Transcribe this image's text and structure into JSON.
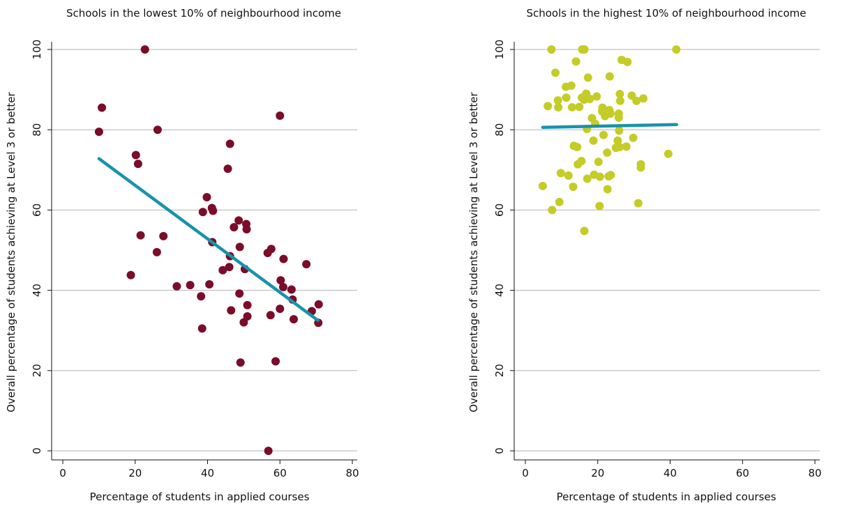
{
  "chart_data": [
    {
      "type": "scatter",
      "title": "Schools in the lowest 10% of neighbourhood income",
      "xlabel": "Percentage of students in applied courses",
      "ylabel": "Overall percentage of students achieving at Level 3 or better",
      "xlim": [
        -3,
        82
      ],
      "ylim": [
        -2,
        102
      ],
      "xticks": [
        "0",
        "20",
        "40",
        "60",
        "80"
      ],
      "yticks": [
        "0",
        "20",
        "40",
        "60",
        "80",
        "100"
      ],
      "grid": true,
      "point_color": "#7b0c2a",
      "line_color": "#1793aa",
      "fit_line": [
        [
          10,
          72.8
        ],
        [
          70.5,
          32.5
        ]
      ],
      "points": [
        [
          10,
          79.5
        ],
        [
          10.8,
          85.5
        ],
        [
          18.8,
          43.8
        ],
        [
          20.2,
          73.7
        ],
        [
          20.8,
          71.5
        ],
        [
          21.5,
          53.7
        ],
        [
          22.7,
          100
        ],
        [
          26,
          49.5
        ],
        [
          26.2,
          80
        ],
        [
          27.8,
          53.5
        ],
        [
          31.5,
          41
        ],
        [
          35.2,
          41.3
        ],
        [
          38.2,
          38.5
        ],
        [
          38.5,
          30.5
        ],
        [
          38.7,
          59.5
        ],
        [
          39.8,
          63.2
        ],
        [
          40.5,
          41.5
        ],
        [
          41.2,
          60.5
        ],
        [
          41.3,
          52
        ],
        [
          41.5,
          59.8
        ],
        [
          44.2,
          45
        ],
        [
          45.6,
          70.3
        ],
        [
          46,
          45.8
        ],
        [
          46.2,
          76.5
        ],
        [
          46.2,
          48.5
        ],
        [
          46.5,
          35
        ],
        [
          47.3,
          55.7
        ],
        [
          48.6,
          57.4
        ],
        [
          48.8,
          39.2
        ],
        [
          48.9,
          50.8
        ],
        [
          49.1,
          22
        ],
        [
          50,
          32
        ],
        [
          50.3,
          45.3
        ],
        [
          50.7,
          56.5
        ],
        [
          50.8,
          55.2
        ],
        [
          51,
          36.3
        ],
        [
          51,
          33.5
        ],
        [
          56.6,
          49.3
        ],
        [
          56.8,
          0
        ],
        [
          57.4,
          33.8
        ],
        [
          57.6,
          50.3
        ],
        [
          58.8,
          22.3
        ],
        [
          60,
          83.5
        ],
        [
          60,
          35.4
        ],
        [
          60.2,
          42.5
        ],
        [
          60.9,
          40.8
        ],
        [
          61,
          47.8
        ],
        [
          63.2,
          40.2
        ],
        [
          63.5,
          37.7
        ],
        [
          63.8,
          32.8
        ],
        [
          67.3,
          46.5
        ],
        [
          68.8,
          34.8
        ],
        [
          70.6,
          31.9
        ],
        [
          70.7,
          36.5
        ]
      ]
    },
    {
      "type": "scatter",
      "title": "Schools in the highest 10% of neighbourhood income",
      "xlabel": "Percentage of students in applied courses",
      "ylabel": "Overall percentage of students achieving at Level 3 or better",
      "xlim": [
        -3,
        82
      ],
      "ylim": [
        -2,
        102
      ],
      "xticks": [
        "0",
        "20",
        "40",
        "60",
        "80"
      ],
      "yticks": [
        "0",
        "20",
        "40",
        "60",
        "80",
        "100"
      ],
      "grid": true,
      "point_color": "#c4cc27",
      "line_color": "#1793aa",
      "fit_line": [
        [
          4.8,
          80.6
        ],
        [
          41.8,
          81.3
        ]
      ],
      "points": [
        [
          4.8,
          66
        ],
        [
          6.2,
          85.9
        ],
        [
          7.2,
          100
        ],
        [
          7.4,
          60
        ],
        [
          8.3,
          94.2
        ],
        [
          9,
          87.3
        ],
        [
          9.1,
          85.6
        ],
        [
          9.4,
          62
        ],
        [
          9.8,
          69.2
        ],
        [
          11.2,
          90.7
        ],
        [
          11.3,
          88
        ],
        [
          11.9,
          68.6
        ],
        [
          12.7,
          91
        ],
        [
          12.9,
          85.6
        ],
        [
          13.2,
          65.8
        ],
        [
          13.4,
          76
        ],
        [
          14,
          97
        ],
        [
          14.3,
          75.7
        ],
        [
          14.5,
          71.4
        ],
        [
          14.9,
          85.7
        ],
        [
          15.5,
          72.2
        ],
        [
          15.6,
          88
        ],
        [
          15.7,
          100
        ],
        [
          16.2,
          87.5
        ],
        [
          16.3,
          100
        ],
        [
          16.3,
          54.8
        ],
        [
          16.8,
          89
        ],
        [
          17,
          80.2
        ],
        [
          17.1,
          67.8
        ],
        [
          17.3,
          93
        ],
        [
          17.8,
          87.7
        ],
        [
          18.4,
          82.9
        ],
        [
          18.8,
          77.3
        ],
        [
          19,
          68.8
        ],
        [
          19.3,
          81.5
        ],
        [
          19.7,
          88.3
        ],
        [
          20.2,
          72
        ],
        [
          20.5,
          61
        ],
        [
          20.6,
          68.3
        ],
        [
          21.2,
          84.6
        ],
        [
          21.3,
          85.5
        ],
        [
          21.6,
          78.7
        ],
        [
          22,
          83.4
        ],
        [
          22.6,
          74.3
        ],
        [
          22.7,
          65.2
        ],
        [
          23,
          68.4
        ],
        [
          23.2,
          84.9
        ],
        [
          23.3,
          93.3
        ],
        [
          23.5,
          84
        ],
        [
          23.6,
          68.7
        ],
        [
          25,
          75.5
        ],
        [
          25.5,
          77.3
        ],
        [
          25.8,
          84
        ],
        [
          25.8,
          83
        ],
        [
          25.9,
          79.8
        ],
        [
          26,
          75.7
        ],
        [
          26.1,
          88.9
        ],
        [
          26.2,
          87.2
        ],
        [
          26.6,
          97.4
        ],
        [
          27.9,
          75.8
        ],
        [
          28.2,
          96.9
        ],
        [
          29.4,
          88.5
        ],
        [
          29.8,
          78
        ],
        [
          30.7,
          87.2
        ],
        [
          31.2,
          61.7
        ],
        [
          31.9,
          71.4
        ],
        [
          31.9,
          70.6
        ],
        [
          32.6,
          87.8
        ],
        [
          39.5,
          74
        ],
        [
          41.7,
          100
        ]
      ]
    }
  ]
}
